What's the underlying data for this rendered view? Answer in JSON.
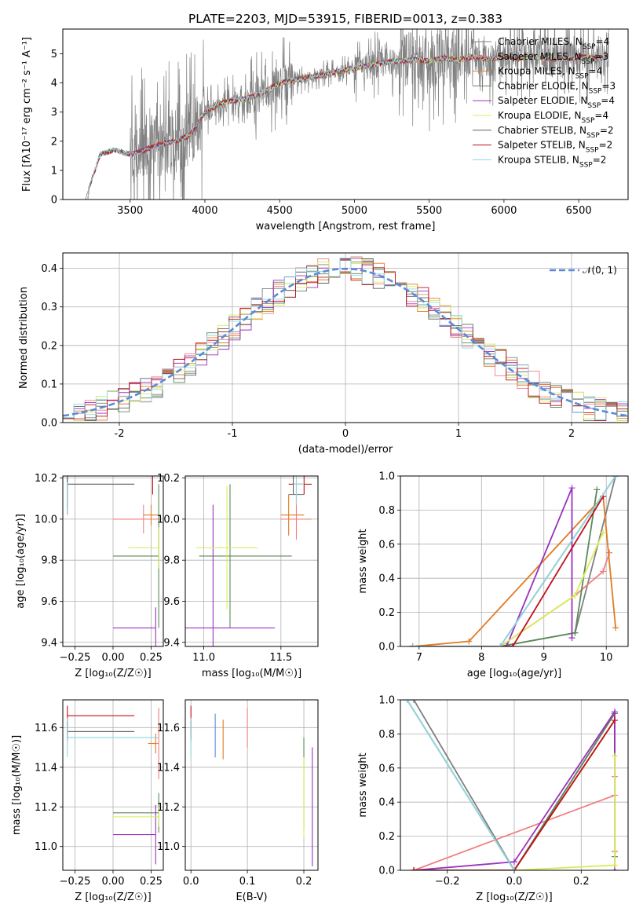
{
  "figure": {
    "title": "PLATE=2203, MJD=53915, FIBERID=0013, z=0.383"
  },
  "colors": [
    "#808080",
    "#f08080",
    "#e07b24",
    "#5a8a5a",
    "#9b30c0",
    "#d8ec58",
    "#606060",
    "#c0101a",
    "#90d8e0"
  ],
  "chart_data": [
    {
      "id": "spectrum",
      "type": "line",
      "xlabel": "wavelength [Angstrom, rest frame]",
      "ylabel": "Flux [fλ10⁻¹⁷ erg cm⁻² s⁻¹ A⁻¹]",
      "xlim": [
        3050,
        6830
      ],
      "ylim": [
        0,
        5.85
      ],
      "xticks": [
        3500,
        4000,
        4500,
        5000,
        5500,
        6000,
        6500
      ],
      "yticks": [
        0,
        1,
        2,
        3,
        4,
        5
      ],
      "continuum_x": [
        3200,
        3300,
        3400,
        3500,
        3600,
        3700,
        3800,
        3900,
        3950,
        4000,
        4100,
        4200,
        4300,
        4400,
        4500,
        4600,
        4700,
        4800,
        4900,
        5000,
        5100,
        5200,
        5300,
        5400,
        5500,
        5600,
        5700,
        5800,
        5900,
        6000,
        6100,
        6200,
        6300,
        6400,
        6500,
        6600,
        6700
      ],
      "continuum_y": [
        0,
        1.55,
        1.7,
        1.55,
        1.7,
        1.9,
        2.0,
        2.2,
        2.6,
        3.0,
        3.3,
        3.4,
        3.5,
        3.7,
        4.0,
        4.1,
        4.2,
        4.3,
        4.4,
        4.5,
        4.6,
        4.7,
        4.75,
        4.8,
        4.75,
        4.85,
        4.8,
        4.9,
        4.8,
        4.9,
        4.85,
        4.9,
        4.85,
        4.8,
        4.9,
        4.85,
        4.85
      ],
      "data_x_range": [
        3200,
        6700
      ],
      "legend": {
        "placement": "upper-right",
        "entries": [
          "Chabrier MILES, N_SSP=4",
          "Salpeter MILES, N_SSP=3",
          "Kroupa MILES, N_SSP=4",
          "Chabrier ELODIE, N_SSP=3",
          "Salpeter ELODIE, N_SSP=4",
          "Kroupa ELODIE, N_SSP=4",
          "Chabrier STELIB, N_SSP=2",
          "Salpeter STELIB, N_SSP=2",
          "Kroupa STELIB, N_SSP=2"
        ]
      }
    },
    {
      "id": "residuals",
      "type": "line",
      "xlabel": "(data-model)/error",
      "ylabel": "Normed distribution",
      "xlim": [
        -2.5,
        2.5
      ],
      "ylim": [
        0,
        0.44
      ],
      "xticks": [
        -2,
        -1,
        0,
        1,
        2
      ],
      "yticks": [
        0.0,
        0.1,
        0.2,
        0.3,
        0.4
      ],
      "grid": true,
      "gaussian_label": "𝒩(0, 1)",
      "gaussian_color": "#5b8bd8",
      "hist_bins": 51
    },
    {
      "id": "age-vs-Z",
      "type": "scatter",
      "xlabel": "Z [log₁₀(Z/Z☉)]",
      "ylabel": "age  [log₁₀(age/yr)]",
      "xlim": [
        -0.33,
        0.33
      ],
      "ylim": [
        9.38,
        10.21
      ],
      "xticks": [
        -0.25,
        0.0,
        0.25
      ],
      "xticklabels": [
        "−0.25",
        "0.00",
        "0.25"
      ],
      "yticks": [
        9.4,
        9.6,
        9.8,
        10.0,
        10.2
      ],
      "grid": true,
      "points": [
        {
          "x": -0.3,
          "y": 10.17,
          "xerr": [
            0.0,
            0.44
          ],
          "yerr": 0.15,
          "c": 0
        },
        {
          "x": 0.2,
          "y": 10.0,
          "xerr": [
            0.2,
            0.1
          ],
          "yerr": 0.07,
          "c": 1
        },
        {
          "x": 0.25,
          "y": 10.02,
          "xerr": [
            0.05,
            0.05
          ],
          "yerr": 0.05,
          "c": 2
        },
        {
          "x": 0.3,
          "y": 9.82,
          "xerr": [
            0.3,
            0.0
          ],
          "yerr": 0.35,
          "c": 3
        },
        {
          "x": 0.28,
          "y": 9.47,
          "xerr": [
            0.28,
            0.0
          ],
          "yerr": 0.1,
          "c": 4
        },
        {
          "x": 0.3,
          "y": 9.86,
          "xerr": [
            0.2,
            0.0
          ],
          "yerr": 0.1,
          "c": 5
        },
        {
          "x": -0.3,
          "y": 10.17,
          "xerr": [
            0.0,
            0.44
          ],
          "yerr": 0.12,
          "c": 6
        },
        {
          "x": 0.26,
          "y": 10.17,
          "xerr": [
            0.0,
            0.0
          ],
          "yerr": 0.05,
          "c": 7
        },
        {
          "x": -0.3,
          "y": 10.1,
          "xerr": [
            0.0,
            0.0
          ],
          "yerr": 0.08,
          "c": 8
        }
      ]
    },
    {
      "id": "age-vs-mass",
      "type": "scatter",
      "xlabel": "mass [log₁₀(M/M☉)]",
      "ylabel": "",
      "xlim": [
        10.88,
        11.74
      ],
      "ylim": [
        9.38,
        10.21
      ],
      "xticks": [
        11.0,
        11.5
      ],
      "xticklabels": [
        "11.0",
        "11.5"
      ],
      "yticks": [
        9.4,
        9.6,
        9.8,
        10.0,
        10.2
      ],
      "grid": true,
      "points": [
        {
          "x": 11.6,
          "y": 10.12,
          "xerr": [
            0.05,
            0.05
          ],
          "yerr": 0.05,
          "c": 0
        },
        {
          "x": 11.6,
          "y": 10.0,
          "xerr": [
            0.1,
            0.1
          ],
          "yerr": 0.1,
          "c": 1
        },
        {
          "x": 11.55,
          "y": 10.02,
          "xerr": [
            0.05,
            0.1
          ],
          "yerr": 0.1,
          "c": 2
        },
        {
          "x": 11.17,
          "y": 9.82,
          "xerr": [
            0.2,
            0.4
          ],
          "yerr": 0.35,
          "c": 3
        },
        {
          "x": 11.06,
          "y": 9.47,
          "xerr": [
            0.2,
            0.4
          ],
          "yerr": 0.6,
          "c": 4
        },
        {
          "x": 11.15,
          "y": 9.86,
          "xerr": [
            0.2,
            0.2
          ],
          "yerr": 0.3,
          "c": 5
        },
        {
          "x": 11.58,
          "y": 10.17,
          "xerr": [
            0.0,
            0.05
          ],
          "yerr": 0.05,
          "c": 6
        },
        {
          "x": 11.65,
          "y": 10.17,
          "xerr": [
            0.1,
            0.05
          ],
          "yerr": 0.05,
          "c": 7
        },
        {
          "x": 11.6,
          "y": 10.17,
          "xerr": [
            0.02,
            0.05
          ],
          "yerr": 0.1,
          "c": 8
        }
      ]
    },
    {
      "id": "massweight-vs-age",
      "type": "line",
      "xlabel": "age  [log₁₀(age/yr)]",
      "ylabel": "mass weight",
      "xlim": [
        6.7,
        10.35
      ],
      "ylim": [
        0,
        1.0
      ],
      "xticks": [
        7,
        8,
        9,
        10
      ],
      "yticks": [
        0.0,
        0.2,
        0.4,
        0.6,
        0.8,
        1.0
      ],
      "grid": true,
      "series": [
        {
          "c": 0,
          "x": [
            6.9,
            8.3,
            9.5,
            10.15
          ],
          "y": [
            0.0,
            0.0,
            0.08,
            1.0
          ]
        },
        {
          "c": 1,
          "x": [
            6.9,
            8.3,
            9.5,
            9.95,
            10.05
          ],
          "y": [
            0.0,
            0.0,
            0.3,
            0.44,
            0.55
          ]
        },
        {
          "c": 2,
          "x": [
            6.9,
            7.8,
            9.95,
            10.15
          ],
          "y": [
            0.0,
            0.03,
            0.88,
            0.11
          ]
        },
        {
          "c": 3,
          "x": [
            6.9,
            8.3,
            9.5,
            9.85
          ],
          "y": [
            0.0,
            0.0,
            0.08,
            0.92
          ]
        },
        {
          "c": 4,
          "x": [
            6.9,
            8.4,
            9.45,
            9.45
          ],
          "y": [
            0.0,
            0.0,
            0.93,
            0.05
          ]
        },
        {
          "c": 5,
          "x": [
            6.9,
            8.3,
            9.5,
            9.95
          ],
          "y": [
            0.0,
            0.0,
            0.3,
            0.67
          ]
        },
        {
          "c": 6,
          "x": [
            6.9,
            8.3,
            10.15
          ],
          "y": [
            0.0,
            0.0,
            1.0
          ]
        },
        {
          "c": 7,
          "x": [
            6.9,
            8.5,
            9.95
          ],
          "y": [
            0.0,
            0.0,
            0.88
          ]
        },
        {
          "c": 8,
          "x": [
            6.9,
            8.3,
            10.15
          ],
          "y": [
            0.0,
            0.0,
            1.0
          ]
        }
      ]
    },
    {
      "id": "mass-vs-Z",
      "type": "scatter",
      "xlabel": "Z [log₁₀(Z/Z☉)]",
      "ylabel": "mass [log₁₀(M/M☉)]",
      "xlim": [
        -0.33,
        0.33
      ],
      "ylim": [
        10.88,
        11.74
      ],
      "xticks": [
        -0.25,
        0.0,
        0.25
      ],
      "xticklabels": [
        "−0.25",
        "0.00",
        "0.25"
      ],
      "yticks": [
        11.0,
        11.2,
        11.4,
        11.6
      ],
      "grid": true,
      "points": [
        {
          "x": -0.3,
          "y": 11.58,
          "xerr": [
            0.0,
            0.44
          ],
          "yerr": 0.05,
          "c": 0
        },
        {
          "x": 0.3,
          "y": 11.52,
          "xerr": [
            0.05,
            0.0
          ],
          "yerr": 0.18,
          "c": 1
        },
        {
          "x": 0.28,
          "y": 11.52,
          "xerr": [
            0.05,
            0.0
          ],
          "yerr": 0.05,
          "c": 2
        },
        {
          "x": 0.3,
          "y": 11.17,
          "xerr": [
            0.3,
            0.0
          ],
          "yerr": 0.1,
          "c": 3
        },
        {
          "x": 0.28,
          "y": 11.06,
          "xerr": [
            0.28,
            0.0
          ],
          "yerr": 0.15,
          "c": 4
        },
        {
          "x": 0.3,
          "y": 11.15,
          "xerr": [
            0.3,
            0.0
          ],
          "yerr": 0.05,
          "c": 5
        },
        {
          "x": -0.3,
          "y": 11.58,
          "xerr": [
            0.0,
            0.44
          ],
          "yerr": 0.03,
          "c": 6
        },
        {
          "x": -0.3,
          "y": 11.66,
          "xerr": [
            0.0,
            0.44
          ],
          "yerr": 0.05,
          "c": 7
        },
        {
          "x": -0.3,
          "y": 11.55,
          "xerr": [
            0.0,
            0.6
          ],
          "yerr": 0.1,
          "c": 8
        }
      ]
    },
    {
      "id": "mass-vs-EBV",
      "type": "scatter",
      "xlabel": "E(B-V)",
      "ylabel": "",
      "xlim": [
        -0.01,
        0.225
      ],
      "ylim": [
        10.88,
        11.74
      ],
      "xticks": [
        0.0,
        0.1,
        0.2
      ],
      "xticklabels": [
        "0.0",
        "0.1",
        "0.2"
      ],
      "yticks": [
        11.0,
        11.2,
        11.4,
        11.6
      ],
      "grid": true,
      "points": [
        {
          "x": 0.0,
          "y": 11.58,
          "xerr": [
            0,
            0
          ],
          "yerr": 0.05,
          "c": 0
        },
        {
          "x": 0.1,
          "y": 11.6,
          "xerr": [
            0,
            0
          ],
          "yerr": 0.1,
          "c": 1
        },
        {
          "x": 0.057,
          "y": 11.54,
          "xerr": [
            0,
            0
          ],
          "yerr": 0.1,
          "c": 2
        },
        {
          "x": 0.2,
          "y": 11.32,
          "xerr": [
            0,
            0
          ],
          "yerr": 0.23,
          "c": 3
        },
        {
          "x": 0.215,
          "y": 11.2,
          "xerr": [
            0,
            0
          ],
          "yerr": 0.3,
          "c": 4
        },
        {
          "x": 0.2,
          "y": 11.25,
          "xerr": [
            0,
            0
          ],
          "yerr": 0.2,
          "c": 5
        },
        {
          "x": 0.0,
          "y": 11.58,
          "xerr": [
            0,
            0
          ],
          "yerr": 0.03,
          "c": 6
        },
        {
          "x": 0.0,
          "y": 11.66,
          "xerr": [
            0,
            0
          ],
          "yerr": 0.05,
          "c": 7
        },
        {
          "x": 0.0,
          "y": 11.55,
          "xerr": [
            0,
            0
          ],
          "yerr": 0.1,
          "c": 8
        }
      ],
      "extra_vlines": [
        {
          "x": 0.043,
          "y": 11.56,
          "yerr": 0.11,
          "c": "#5b8bd8"
        }
      ]
    },
    {
      "id": "massweight-vs-Z",
      "type": "line",
      "xlabel": "Z [log₁₀(Z/Z☉)]",
      "ylabel": "mass weight",
      "xlim": [
        -0.34,
        0.34
      ],
      "ylim": [
        0,
        1.0
      ],
      "xticks": [
        -0.2,
        0.0,
        0.2
      ],
      "xticklabels": [
        "−0.2",
        "0.0",
        "0.2"
      ],
      "yticks": [
        0.0,
        0.2,
        0.4,
        0.6,
        0.8,
        1.0
      ],
      "grid": true,
      "series": [
        {
          "c": 0,
          "x": [
            -0.3,
            0.0,
            0.3
          ],
          "y": [
            1.0,
            0.0,
            0.92
          ]
        },
        {
          "c": 1,
          "x": [
            -0.3,
            0.3,
            0.3
          ],
          "y": [
            0.0,
            0.44,
            0.55
          ]
        },
        {
          "c": 2,
          "x": [
            -0.3,
            0.0,
            0.3,
            0.3
          ],
          "y": [
            0.0,
            0.0,
            0.88,
            0.11
          ]
        },
        {
          "c": 3,
          "x": [
            -0.3,
            0.0,
            0.3,
            0.3
          ],
          "y": [
            0.0,
            0.0,
            0.92,
            0.08
          ]
        },
        {
          "c": 4,
          "x": [
            -0.3,
            0.0,
            0.3,
            0.3
          ],
          "y": [
            0.0,
            0.05,
            0.93,
            0.0
          ]
        },
        {
          "c": 5,
          "x": [
            -0.3,
            0.0,
            0.3,
            0.3
          ],
          "y": [
            0.0,
            0.0,
            0.03,
            0.67
          ]
        },
        {
          "c": 6,
          "x": [
            -0.32,
            0.0
          ],
          "y": [
            1.0,
            0.0
          ]
        },
        {
          "c": 7,
          "x": [
            -0.3,
            0.0,
            0.3
          ],
          "y": [
            0.0,
            0.0,
            0.88
          ]
        },
        {
          "c": 8,
          "x": [
            -0.32,
            0.0
          ],
          "y": [
            1.0,
            0.0
          ]
        }
      ]
    }
  ]
}
